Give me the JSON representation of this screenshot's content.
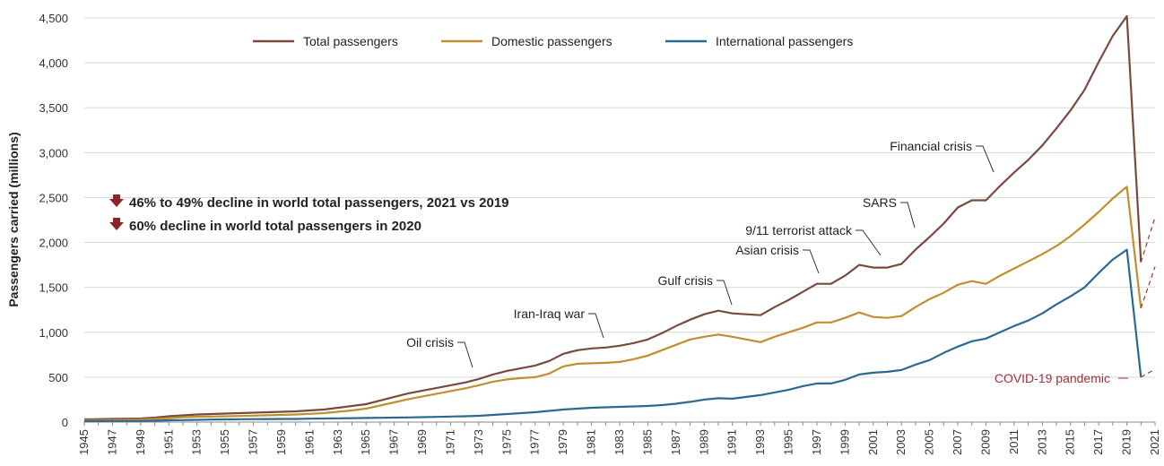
{
  "chart_data": {
    "type": "line",
    "ylabel": "Passengers carried (millions)",
    "xlabel": "",
    "title": "",
    "ylim": [
      0,
      4500
    ],
    "yticks": [
      0,
      500,
      1000,
      1500,
      2000,
      2500,
      3000,
      3500,
      4000,
      4500
    ],
    "ytick_labels": [
      "0",
      "500",
      "1,000",
      "1,500",
      "2,000",
      "2,500",
      "3,000",
      "3,500",
      "4,000",
      "4,500"
    ],
    "xticks": [
      "1945",
      "1947",
      "1949",
      "1951",
      "1953",
      "1955",
      "1957",
      "1959",
      "1961",
      "1963",
      "1965",
      "1967",
      "1969",
      "1971",
      "1973",
      "1975",
      "1977",
      "1979",
      "1981",
      "1983",
      "1985",
      "1987",
      "1989",
      "1991",
      "1993",
      "1995",
      "1997",
      "1999",
      "2001",
      "2003",
      "2005",
      "2007",
      "2009",
      "2011",
      "2013",
      "2015",
      "2017",
      "2019",
      "2021"
    ],
    "grid": "horizontal",
    "legend_position": "top",
    "x": [
      1945,
      1946,
      1947,
      1948,
      1949,
      1950,
      1951,
      1952,
      1953,
      1954,
      1955,
      1956,
      1957,
      1958,
      1959,
      1960,
      1961,
      1962,
      1963,
      1964,
      1965,
      1966,
      1967,
      1968,
      1969,
      1970,
      1971,
      1972,
      1973,
      1974,
      1975,
      1976,
      1977,
      1978,
      1979,
      1980,
      1981,
      1982,
      1983,
      1984,
      1985,
      1986,
      1987,
      1988,
      1989,
      1990,
      1991,
      1992,
      1993,
      1994,
      1995,
      1996,
      1997,
      1998,
      1999,
      2000,
      2001,
      2002,
      2003,
      2004,
      2005,
      2006,
      2007,
      2008,
      2009,
      2010,
      2011,
      2012,
      2013,
      2014,
      2015,
      2016,
      2017,
      2018,
      2019,
      2020
    ],
    "series": [
      {
        "name": "Total passengers",
        "color": "#7a4a3e",
        "values": [
          30,
          33,
          36,
          38,
          40,
          50,
          65,
          75,
          85,
          90,
          95,
          100,
          105,
          110,
          115,
          120,
          130,
          140,
          160,
          180,
          200,
          240,
          280,
          320,
          350,
          380,
          410,
          440,
          480,
          530,
          570,
          600,
          630,
          680,
          760,
          800,
          820,
          830,
          850,
          880,
          920,
          990,
          1070,
          1140,
          1200,
          1240,
          1210,
          1200,
          1190,
          1280,
          1360,
          1450,
          1540,
          1540,
          1630,
          1750,
          1720,
          1720,
          1760,
          1920,
          2060,
          2210,
          2390,
          2470,
          2470,
          2630,
          2780,
          2920,
          3080,
          3270,
          3470,
          3700,
          4010,
          4300,
          4520,
          1780
        ]
      },
      {
        "name": "Domestic passengers",
        "color": "#c08f2e",
        "values": [
          20,
          22,
          24,
          26,
          28,
          35,
          45,
          55,
          60,
          62,
          65,
          68,
          72,
          76,
          80,
          85,
          92,
          100,
          115,
          130,
          150,
          185,
          220,
          255,
          285,
          315,
          345,
          375,
          410,
          450,
          475,
          490,
          500,
          540,
          620,
          650,
          655,
          660,
          670,
          700,
          740,
          800,
          860,
          920,
          950,
          975,
          950,
          920,
          890,
          950,
          1000,
          1050,
          1110,
          1110,
          1160,
          1220,
          1170,
          1160,
          1180,
          1280,
          1370,
          1440,
          1530,
          1570,
          1540,
          1630,
          1710,
          1790,
          1870,
          1960,
          2070,
          2200,
          2340,
          2490,
          2620,
          1270
        ]
      },
      {
        "name": "International passengers",
        "color": "#2a6a91",
        "values": [
          10,
          11,
          12,
          12,
          12,
          15,
          20,
          22,
          25,
          28,
          30,
          32,
          33,
          34,
          35,
          35,
          38,
          40,
          42,
          44,
          46,
          48,
          50,
          52,
          55,
          58,
          62,
          65,
          70,
          80,
          90,
          100,
          110,
          125,
          140,
          150,
          160,
          165,
          170,
          175,
          180,
          190,
          205,
          225,
          250,
          265,
          260,
          280,
          300,
          330,
          360,
          400,
          430,
          430,
          470,
          530,
          550,
          560,
          580,
          640,
          690,
          770,
          840,
          900,
          930,
          1000,
          1070,
          1130,
          1210,
          1310,
          1400,
          1500,
          1660,
          1810,
          1920,
          500
        ]
      }
    ],
    "projection": {
      "x": [
        2020,
        2021
      ],
      "total": [
        1780,
        2280
      ],
      "domestic": [
        1270,
        1730
      ],
      "international": [
        500,
        590
      ]
    },
    "annotations": [
      {
        "label": "Oil crisis",
        "x": 1973
      },
      {
        "label": "Iran-Iraq war",
        "x": 1982
      },
      {
        "label": "Gulf crisis",
        "x": 1991
      },
      {
        "label": "Asian crisis",
        "x": 1997
      },
      {
        "label": "9/11 terrorist attack",
        "x": 2001
      },
      {
        "label": "SARS",
        "x": 2003
      },
      {
        "label": "Financial crisis",
        "x": 2008
      },
      {
        "label": "COVID-19 pandemic",
        "x": 2020
      }
    ],
    "notes": [
      "46% to 49% decline in world total passengers, 2021 vs 2019",
      "60% decline in world total passengers in 2020"
    ]
  },
  "colors": {
    "grid": "#d9d9d9",
    "axis": "#888888",
    "down_arrow": "#8b2626",
    "covid_text": "#a0303a"
  }
}
